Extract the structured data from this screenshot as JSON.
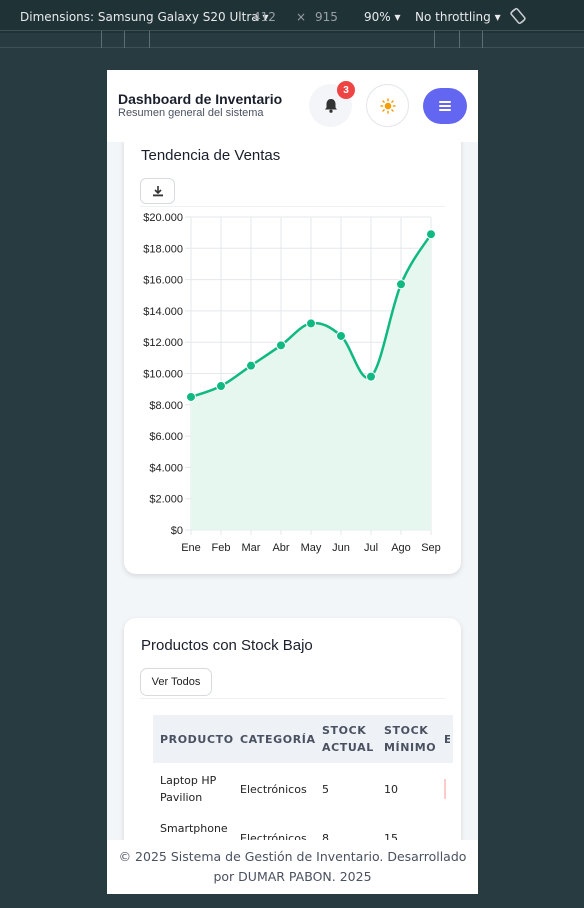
{
  "devtools": {
    "device_label": "Dimensions: Samsung Galaxy S20 Ultra",
    "width": "412",
    "times": "×",
    "height": "915",
    "zoom": "90%",
    "throttling": "No throttling"
  },
  "header": {
    "title": "Dashboard de Inventario",
    "subtitle": "Resumen general del sistema",
    "notifications_count": "3"
  },
  "sales_card": {
    "title": "Tendencia de Ventas"
  },
  "chart_data": {
    "type": "line",
    "categories": [
      "Ene",
      "Feb",
      "Mar",
      "Abr",
      "May",
      "Jun",
      "Jul",
      "Ago",
      "Sep"
    ],
    "values": [
      8500,
      9200,
      10500,
      11800,
      13200,
      12400,
      9800,
      15700,
      18900
    ],
    "ylim": [
      0,
      20000
    ],
    "yticks": [
      "$0",
      "$2.000",
      "$4.000",
      "$6.000",
      "$8.000",
      "$10.000",
      "$12.000",
      "$14.000",
      "$16.000",
      "$18.000",
      "$20.000"
    ],
    "grid": true,
    "line_color": "#10b981",
    "fill_color": "#e6f7ef"
  },
  "stock_card": {
    "title": "Productos con Stock Bajo",
    "view_all": "Ver Todos",
    "columns": [
      {
        "line1": "PRODUCTO",
        "line2": ""
      },
      {
        "line1": "CATEGORÍA",
        "line2": ""
      },
      {
        "line1": "STOCK",
        "line2": "ACTUAL"
      },
      {
        "line1": "STOCK",
        "line2": "MÍNIMO"
      },
      {
        "line1": "E",
        "line2": ""
      }
    ],
    "rows": [
      {
        "product": [
          "Laptop HP",
          "Pavilion"
        ],
        "category": "Electrónicos",
        "current": "5",
        "minimum": "10"
      },
      {
        "product": [
          "Smartphone",
          ""
        ],
        "category": "Electrónicos",
        "current": "8",
        "minimum": "15"
      }
    ]
  },
  "footer": {
    "line1": "© 2025 Sistema de Gestión de Inventario. Desarrollado",
    "line2": "por DUMAR PABON. 2025"
  }
}
